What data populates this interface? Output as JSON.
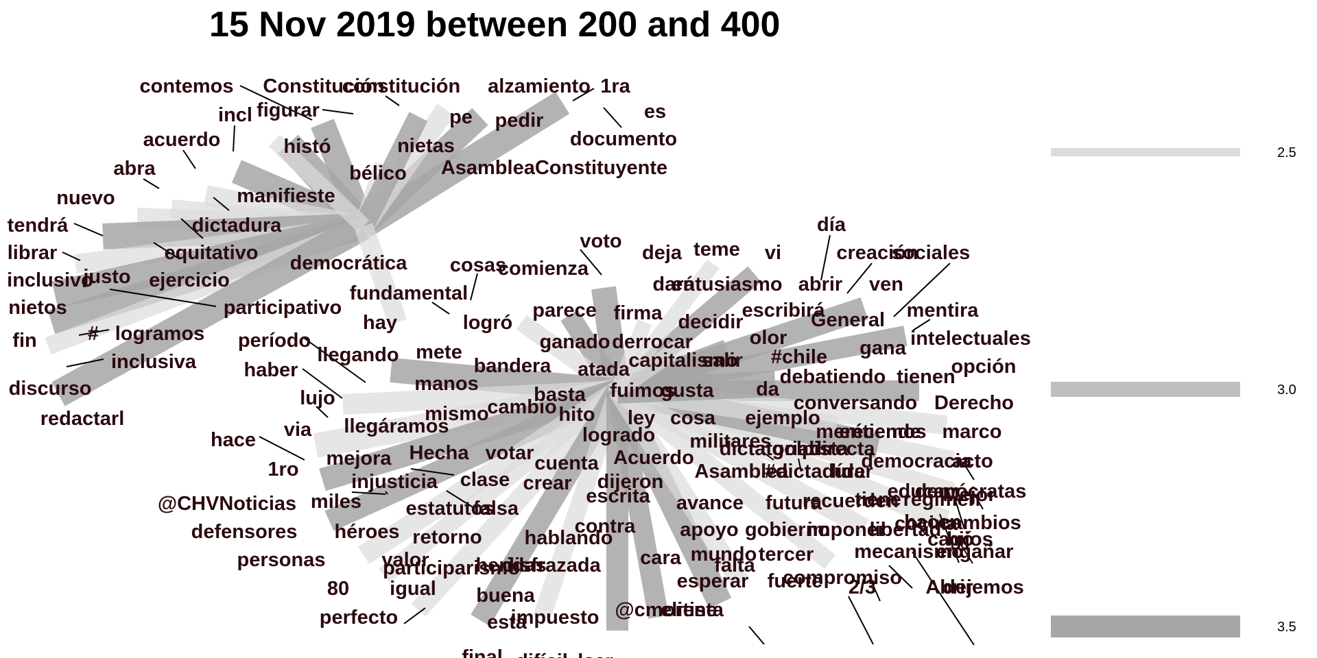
{
  "title": "15 Nov 2019 between 200 and 400",
  "colors": {
    "word": "#2b0a0f",
    "edge_dark": "#a6a6a6",
    "edge_mid": "#bfbfbf",
    "edge_light": "#dcdcdc",
    "leader": "#000000"
  },
  "legend": [
    {
      "label": "2.5",
      "shade": "light"
    },
    {
      "label": "3.0",
      "shade": "mid"
    },
    {
      "label": "3.5",
      "shade": "dark"
    }
  ],
  "words": [
    "contemos",
    "Constitución",
    "constitución",
    "alzamiento",
    "1ra",
    "es",
    "incl",
    "figurar",
    "pe",
    "pedir",
    "documento",
    "acuerdo",
    "histó",
    "nietas",
    "abra",
    "bélico",
    "AsambleaConstituyente",
    "nuevo",
    "manifieste",
    "tendrá",
    "dictadura",
    "librar",
    "equitativo",
    "democrática",
    "inclusivo",
    "justo",
    "ejercicio",
    "nietos",
    "participativo",
    "fin",
    "#",
    "logramos",
    "inclusiva",
    "discurso",
    "redactarl",
    "cosas",
    "fundamental",
    "hay",
    "logró",
    "período",
    "llegando",
    "haber",
    "mete",
    "bandera",
    "lujo",
    "manos",
    "via",
    "llegáramos",
    "mismo",
    "cambio",
    "hace",
    "mejora",
    "Hecha",
    "votar",
    "1ro",
    "injusticia",
    "clase",
    "@CHVNoticias",
    "miles",
    "estatutos",
    "falsa",
    "defensores",
    "héroes",
    "retorno",
    "personas",
    "valor",
    "participarismo",
    "80",
    "igual",
    "buena",
    "perfecto",
    "está",
    "impuesto",
    "final",
    "difícil",
    "leer",
    "voto",
    "comienza",
    "deja",
    "teme",
    "vi",
    "día",
    "creación",
    "sociales",
    "dará",
    "entusiasmo",
    "abrir",
    "ven",
    "parece",
    "firma",
    "decidir",
    "escribirá",
    "General",
    "mentira",
    "ganado",
    "derrocar",
    "olor",
    "intelectuales",
    "atada",
    "capitalismo",
    "salir",
    "#chile",
    "gana",
    "opción",
    "basta",
    "fuimos",
    "gusta",
    "da",
    "debatiendo",
    "tienen",
    "hito",
    "ley",
    "cosa",
    "ejemplo",
    "conversando",
    "Derecho",
    "logrado",
    "militares",
    "merécemos",
    "marco",
    "entiende",
    "dictatorial",
    "golpista",
    "directa",
    "cuenta",
    "Acuerdo",
    "democracia",
    "acto",
    "dijeron",
    "Asamblea",
    "#dictadura",
    "líder",
    "educar",
    "demócratas",
    "crear",
    "escrita",
    "recuerden",
    "régimen",
    "Mejor",
    "contra",
    "avance",
    "futura",
    "tiene",
    "hacen",
    "cambios",
    "apoyo",
    "gobierno",
    "imponer",
    "libertad",
    "cagó",
    "hijos",
    "hablando",
    "mundo",
    "tercer",
    "mecanismo",
    "engañar",
    "cocina",
    "heridas",
    "cara",
    "disfrazada",
    "falta",
    "esperar",
    "fuerte",
    "compromiso",
    "2/3",
    "Abrir",
    "dejemos",
    "@cmorene",
    "elitista"
  ]
}
